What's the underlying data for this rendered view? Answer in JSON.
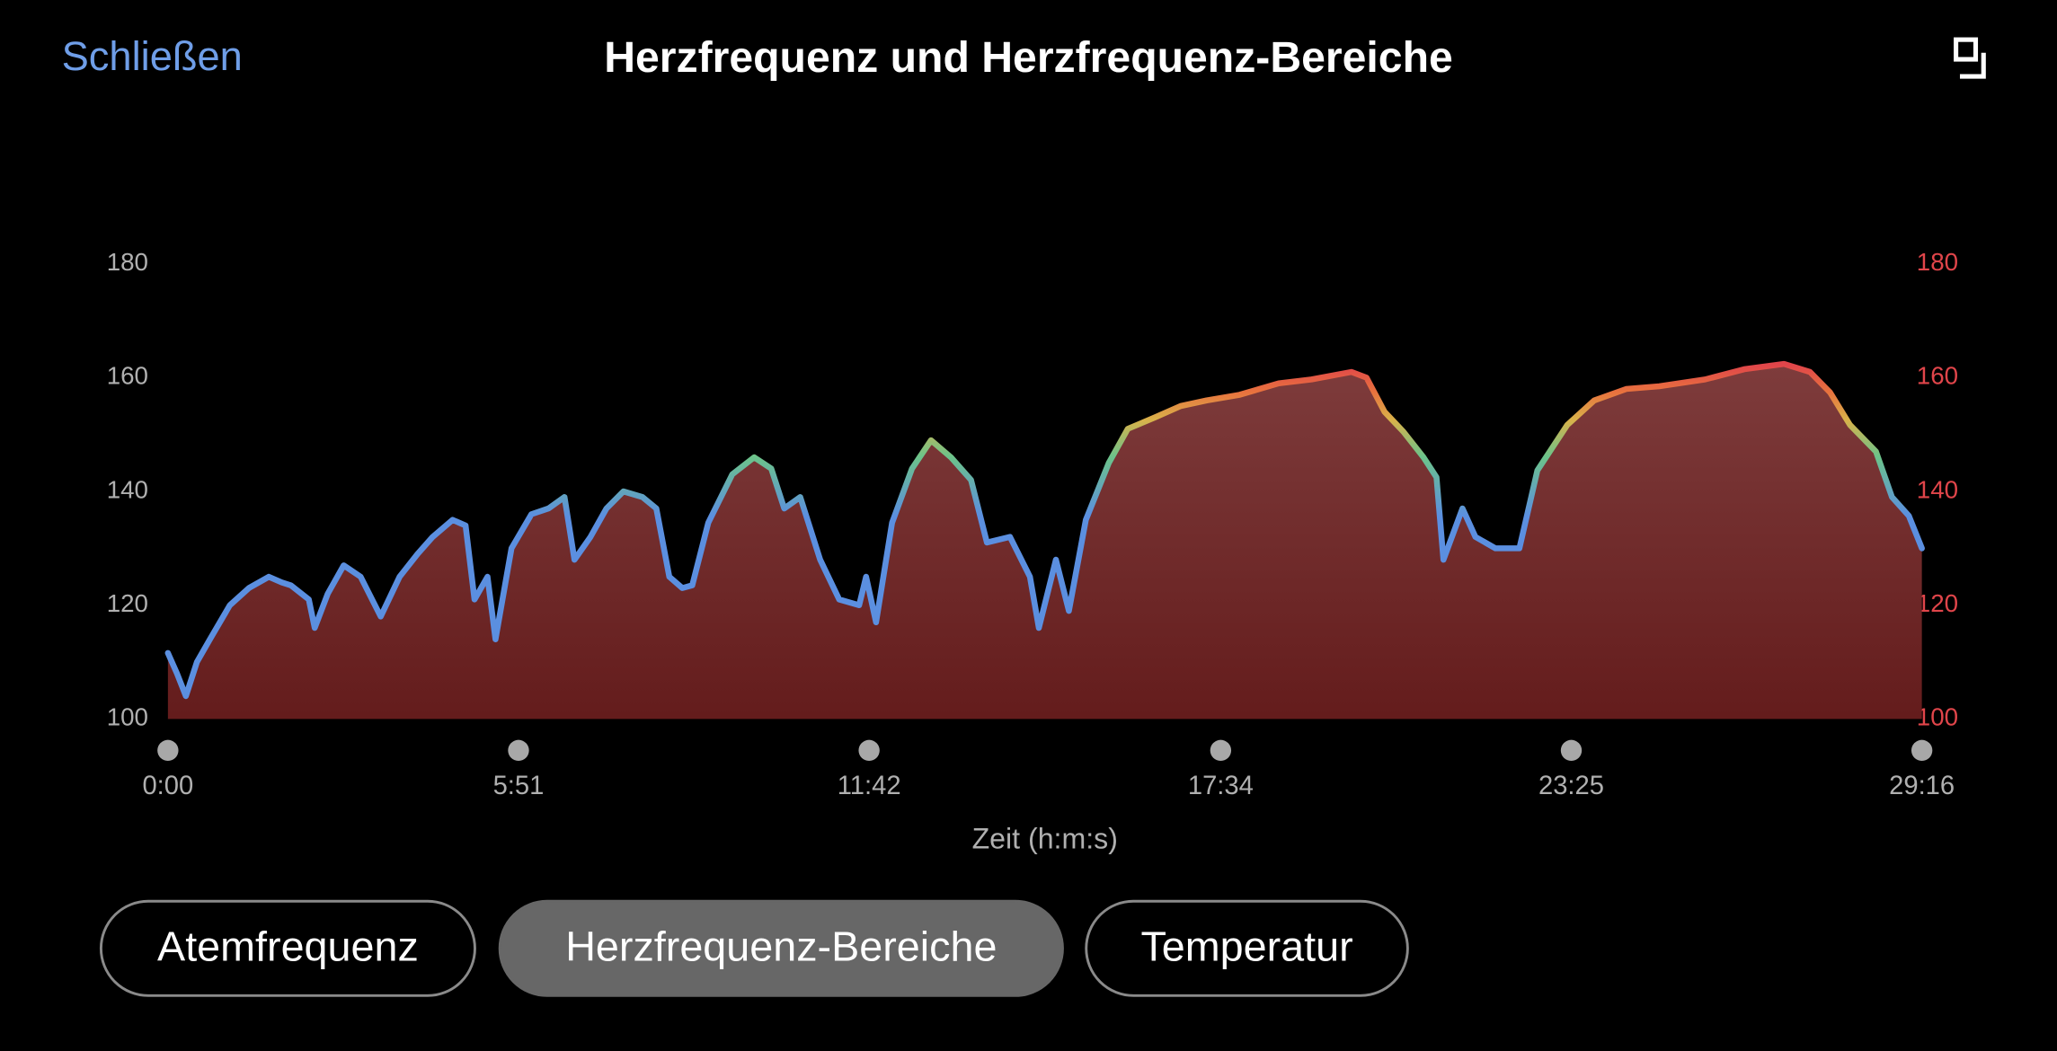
{
  "header": {
    "close": "Schließen",
    "title": "Herzfrequenz und Herzfrequenz-Bereiche"
  },
  "chart_data": {
    "type": "area",
    "xlabel": "Zeit (h:m:s)",
    "x": [
      0,
      9,
      18,
      29,
      42,
      62,
      81,
      101,
      114,
      123,
      141,
      147,
      160,
      176,
      193,
      213,
      232,
      250,
      265,
      285,
      298,
      307,
      320,
      328,
      344,
      364,
      381,
      397,
      407,
      423,
      439,
      456,
      475,
      489,
      502,
      515,
      525,
      541,
      565,
      587,
      604,
      617,
      633,
      653,
      672,
      692,
      699,
      709,
      725,
      745,
      764,
      784,
      804,
      820,
      843,
      863,
      872,
      889,
      902,
      919,
      942,
      961,
      988,
      1014,
      1040,
      1073,
      1112,
      1145,
      1185,
      1200,
      1218,
      1237,
      1257,
      1270,
      1277,
      1296,
      1309,
      1329,
      1353,
      1371,
      1401,
      1428,
      1460,
      1493,
      1539,
      1579,
      1618,
      1644,
      1664,
      1684,
      1710,
      1726,
      1743,
      1756
    ],
    "series": [
      {
        "name": "Herzfrequenz",
        "color": "#5b8fe0",
        "values": [
          111.6,
          108,
          104,
          110,
          114,
          120,
          123,
          125,
          124,
          123.5,
          121,
          116,
          122,
          127,
          125,
          118,
          125,
          129,
          132,
          135,
          134,
          121,
          125,
          114,
          130,
          136,
          137,
          139,
          128,
          132,
          137,
          140,
          139,
          137,
          125,
          123,
          123.5,
          134.5,
          143,
          146,
          144,
          137,
          139,
          128,
          121,
          120,
          125,
          117,
          134.5,
          144,
          149,
          146,
          142,
          131,
          132,
          125,
          116,
          128,
          119,
          135,
          145,
          151,
          153,
          155,
          156,
          157,
          159,
          159.7,
          161,
          160,
          154,
          150.5,
          146,
          142.5,
          128,
          137,
          132,
          130,
          130,
          143.7,
          151.7,
          156,
          158,
          158.5,
          159.7,
          161.5,
          162.4,
          161,
          157.4,
          151.7,
          147,
          139,
          135.7,
          130
        ]
      }
    ],
    "xlim": [
      0,
      1756
    ],
    "xticks": [
      {
        "value": 0,
        "label": "0:00"
      },
      {
        "value": 351,
        "label": "5:51"
      },
      {
        "value": 702,
        "label": "11:42"
      },
      {
        "value": 1054,
        "label": "17:34"
      },
      {
        "value": 1405,
        "label": "23:25"
      },
      {
        "value": 1756,
        "label": "29:16"
      }
    ],
    "ylim": [
      100,
      180
    ],
    "yticks": [
      100,
      120,
      140,
      160,
      180
    ],
    "y2lim": [
      100,
      180
    ],
    "y2ticks": [
      100,
      120,
      140,
      160,
      180
    ],
    "y2color": "#e0454a",
    "fill": "#7a3535"
  },
  "buttons": [
    {
      "label": "Atemfrequenz",
      "selected": false
    },
    {
      "label": "Herzfrequenz-Bereiche",
      "selected": true
    },
    {
      "label": "Temperatur",
      "selected": false
    }
  ]
}
